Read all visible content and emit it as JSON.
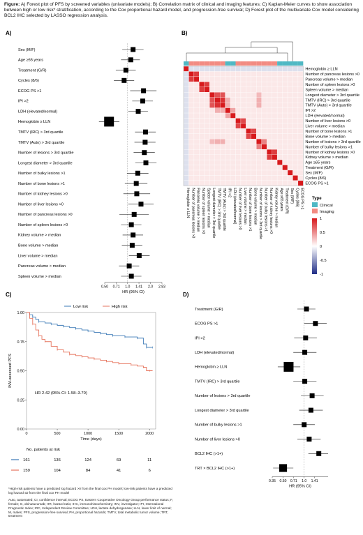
{
  "caption": {
    "label": "Figure:",
    "text": "A) Forest plot of PFS by screened variables (univariate models); B) Correlation matrix of clinical and imaging features; C) Kaplan-Meier curves to show association between high or low risk* stratification, according to the Cox proportional hazard model, and progression-free survival; D) Forest plot of the multivariate Cox model considering BCL2 IHC selected by LASSO regression analysis."
  },
  "panel_labels": {
    "a": "A)",
    "b": "B)",
    "c": "C)",
    "d": "D)"
  },
  "chart_data": [
    {
      "id": "A",
      "type": "forest",
      "xlabel": "HR (95% CI)",
      "x_ticks": [
        "0.50",
        "0.71",
        "1.0",
        "1.41",
        "2.0",
        "2.83"
      ],
      "scale": "log2",
      "xlim": [
        0.5,
        2.83
      ],
      "reference_line": 1.0,
      "rows": [
        {
          "label": "Sex (M/F)",
          "hr": 1.18,
          "lo": 0.85,
          "hi": 1.62
        },
        {
          "label": "Age ≥65 years",
          "hr": 1.1,
          "lo": 0.82,
          "hi": 1.45
        },
        {
          "label": "Treatment (G/R)",
          "hr": 0.95,
          "lo": 0.7,
          "hi": 1.28
        },
        {
          "label": "Cycles (8/6)",
          "hi": 1.22,
          "hr": 0.9,
          "lo": 0.66
        },
        {
          "label": "ECOG PS >1",
          "hr": 1.62,
          "lo": 1.08,
          "hi": 2.4
        },
        {
          "label": "IPI >2",
          "hr": 1.58,
          "lo": 1.15,
          "hi": 2.15
        },
        {
          "label": "LDH (elevated/normal)",
          "hr": 1.38,
          "lo": 1.02,
          "hi": 1.85
        },
        {
          "label": "Hemoglobin ≥ LLN",
          "hr": 0.57,
          "lo": 0.42,
          "hi": 0.78
        },
        {
          "label": "TMTV (IRC) > 3rd quartile",
          "hr": 1.72,
          "lo": 1.25,
          "hi": 2.35
        },
        {
          "label": "TMTV (Auto) > 3rd quartile",
          "hr": 1.7,
          "lo": 1.23,
          "hi": 2.33
        },
        {
          "label": "Number of lesions > 3rd quartile",
          "hr": 1.66,
          "lo": 1.2,
          "hi": 2.28
        },
        {
          "label": "Longest diameter > 3rd quartile",
          "hr": 1.74,
          "lo": 1.26,
          "hi": 2.4
        },
        {
          "label": "Number of bulky lesions >1",
          "hr": 1.36,
          "lo": 0.98,
          "hi": 1.88
        },
        {
          "label": "Number of bone lesions >1",
          "hr": 1.3,
          "lo": 0.92,
          "hi": 1.82
        },
        {
          "label": "Number of kidney lesions >0",
          "hr": 1.32,
          "lo": 0.88,
          "hi": 1.98
        },
        {
          "label": "Number of liver lesions >0",
          "hr": 1.5,
          "lo": 1.02,
          "hi": 2.2
        },
        {
          "label": "Number of pancreas lesions >0",
          "hr": 1.22,
          "lo": 0.78,
          "hi": 1.9
        },
        {
          "label": "Number of spleen lesions >0",
          "hr": 1.12,
          "lo": 0.82,
          "hi": 1.52
        },
        {
          "label": "Kidney volume > median",
          "hr": 1.18,
          "lo": 0.86,
          "hi": 1.6
        },
        {
          "label": "Bone volume > median",
          "hr": 1.15,
          "lo": 0.84,
          "hi": 1.56
        },
        {
          "label": "Liver volume > median",
          "hr": 1.42,
          "lo": 1.04,
          "hi": 1.95
        },
        {
          "label": "Pancreas volume > median",
          "hr": 1.05,
          "lo": 0.77,
          "hi": 1.42
        },
        {
          "label": "Spleen volume > median",
          "hr": 1.12,
          "lo": 0.82,
          "hi": 1.52
        }
      ]
    },
    {
      "id": "B",
      "type": "heatmap",
      "labels": [
        "Hemoglobin ≥ LLN",
        "Number of pancreas lesions >0",
        "Pancreas volume > median",
        "Number of spleen lesions >0",
        "Spleen volume > median",
        "Longest diameter > 3rd quartile",
        "TMTV (IRC) > 3rd quartile",
        "TMTV (Auto) > 3rd quartile",
        "IPI >2",
        "LDH (elevated/normal)",
        "Number of liver lesions >0",
        "Liver volume > median",
        "Number of bone lesions >1",
        "Bone volume > median",
        "Number of lesions > 3rd quartile",
        "Number of bulky lesions >1",
        "Number of kidney lesions >0",
        "Kidney volume > median",
        "Age ≥65 years",
        "Treatment (G/R)",
        "Sex (M/F)",
        "Cycles (8/6)",
        "ECOG PS >1"
      ],
      "types": [
        "Clinical",
        "Imaging",
        "Imaging",
        "Imaging",
        "Imaging",
        "Imaging",
        "Imaging",
        "Imaging",
        "Clinical",
        "Clinical",
        "Imaging",
        "Imaging",
        "Imaging",
        "Imaging",
        "Imaging",
        "Imaging",
        "Imaging",
        "Imaging",
        "Clinical",
        "Clinical",
        "Clinical",
        "Clinical",
        "Clinical"
      ],
      "color_scale": {
        "ticks": [
          "1",
          "0.5",
          "0",
          "-0.5",
          "-1"
        ],
        "high": "#d7191c",
        "mid": "#ffffff",
        "low": "#1f2d86"
      },
      "legend": {
        "title": "Type",
        "items": [
          {
            "label": "Clinical",
            "color": "#4fb8c4"
          },
          {
            "label": "Imaging",
            "color": "#f28b82"
          }
        ]
      },
      "strong_pairs": [
        {
          "a": 1,
          "b": 2,
          "r": 0.85
        },
        {
          "a": 3,
          "b": 4,
          "r": 0.85
        },
        {
          "a": 5,
          "b": 6,
          "r": 0.75
        },
        {
          "a": 5,
          "b": 7,
          "r": 0.75
        },
        {
          "a": 6,
          "b": 7,
          "r": 0.9
        },
        {
          "a": 10,
          "b": 11,
          "r": 0.8
        },
        {
          "a": 12,
          "b": 13,
          "r": 0.8
        },
        {
          "a": 14,
          "b": 15,
          "r": 0.55
        },
        {
          "a": 16,
          "b": 17,
          "r": 0.85
        },
        {
          "a": 6,
          "b": 8,
          "r": 0.35
        },
        {
          "a": 7,
          "b": 8,
          "r": 0.35
        },
        {
          "a": 8,
          "b": 9,
          "r": 0.4
        },
        {
          "a": 5,
          "b": 14,
          "r": 0.3
        },
        {
          "a": 6,
          "b": 14,
          "r": 0.35
        },
        {
          "a": 7,
          "b": 14,
          "r": 0.35
        }
      ]
    },
    {
      "id": "C",
      "type": "line",
      "xlabel": "Time (days)",
      "ylabel": "INV-assessed PFS",
      "x_ticks": [
        0,
        500,
        1000,
        1500,
        2000
      ],
      "y_ticks": [
        "0.00",
        "0.25",
        "0.50",
        "0.75",
        "1.00"
      ],
      "xlim": [
        0,
        2100
      ],
      "ylim": [
        0,
        1
      ],
      "annotation": "HR 2.42 (95% CI: 1.58–3.70)",
      "series": [
        {
          "name": "Low risk",
          "color": "#3a78b5",
          "x": [
            0,
            50,
            100,
            150,
            200,
            300,
            400,
            500,
            600,
            700,
            800,
            900,
            1000,
            1100,
            1200,
            1300,
            1400,
            1500,
            1600,
            1700,
            1800,
            1900,
            1950,
            2000,
            2050
          ],
          "y": [
            1.0,
            0.98,
            0.96,
            0.94,
            0.92,
            0.91,
            0.9,
            0.89,
            0.88,
            0.87,
            0.86,
            0.85,
            0.84,
            0.83,
            0.82,
            0.81,
            0.8,
            0.8,
            0.79,
            0.79,
            0.78,
            0.73,
            0.7,
            0.7,
            0.7
          ]
        },
        {
          "name": "High risk",
          "color": "#e6735c",
          "x": [
            0,
            50,
            100,
            150,
            200,
            250,
            300,
            400,
            500,
            600,
            700,
            800,
            900,
            1000,
            1100,
            1200,
            1300,
            1400,
            1500,
            1600,
            1700,
            1800,
            1900,
            1950,
            2000,
            2050
          ],
          "y": [
            1.0,
            0.95,
            0.9,
            0.85,
            0.8,
            0.77,
            0.75,
            0.71,
            0.68,
            0.66,
            0.64,
            0.63,
            0.62,
            0.61,
            0.6,
            0.59,
            0.58,
            0.57,
            0.56,
            0.56,
            0.55,
            0.54,
            0.53,
            0.5,
            0.5,
            0.5
          ]
        }
      ],
      "risk_table": {
        "title": "No. patients at risk",
        "rows": [
          {
            "name": "Low risk",
            "color": "#3a78b5",
            "values": [
              "161",
              "136",
              "124",
              "69",
              "11"
            ]
          },
          {
            "name": "High risk",
            "color": "#e6735c",
            "values": [
              "159",
              "104",
              "84",
              "41",
              "6"
            ]
          }
        ]
      }
    },
    {
      "id": "D",
      "type": "forest",
      "xlabel": "HR (95% CI)",
      "x_ticks": [
        "0.35",
        "0.50",
        "0.71",
        "1.0",
        "1.41"
      ],
      "scale": "log2",
      "xlim": [
        0.35,
        2.2
      ],
      "reference_line": 1.0,
      "rows": [
        {
          "label": "Treatment (G/R)",
          "hr": 1.08,
          "lo": 0.8,
          "hi": 1.45
        },
        {
          "label": "ECOG PS >1",
          "hr": 1.45,
          "lo": 1.0,
          "hi": 2.1
        },
        {
          "label": "IPI >2",
          "hr": 1.05,
          "lo": 0.72,
          "hi": 1.52
        },
        {
          "label": "LDH (elevated/normal)",
          "hr": 1.02,
          "lo": 0.7,
          "hi": 1.5
        },
        {
          "label": "Hemoglobin ≥ LLN",
          "hr": 0.6,
          "lo": 0.42,
          "hi": 0.88
        },
        {
          "label": "TMTV (IRC) > 3rd quartile",
          "hr": 1.02,
          "lo": 0.7,
          "hi": 1.5
        },
        {
          "label": "Number of lesions > 3rd quartile",
          "hr": 1.3,
          "lo": 0.9,
          "hi": 1.9
        },
        {
          "label": "Longest diameter > 3rd quartile",
          "hr": 1.25,
          "lo": 0.85,
          "hi": 1.85
        },
        {
          "label": "Number of bulky lesions >1",
          "hr": 1.0,
          "lo": 0.7,
          "hi": 1.42
        },
        {
          "label": "Number of liver lesions >0",
          "hr": 1.18,
          "lo": 0.8,
          "hi": 1.72
        },
        {
          "label": "BCL2 IHC (>1+)",
          "hr": 1.62,
          "lo": 1.15,
          "hi": 2.2
        },
        {
          "label": "TRT × BCL2 IHC (>1+)",
          "hr": 0.5,
          "lo": 0.36,
          "hi": 0.7
        }
      ]
    }
  ],
  "footnotes": [
    "*High-risk patients have a predicted log hazard >0 from the final cox PH model; low-risk patients have a predicted log hazard ≤0 from the final cox PH model",
    "Auto, automated; CI, confidence interval; ECOG PS, Eastern Cooperative Oncology Group performance status; F, female; G, obinutuzumab; HR, hazard ratio; IHC, immunohistochemistry; INV, investigator; IPI, International Prognostic Index; IRC, Independent Review Committee; LDH, lactate dehydrogenase; LLN, lower limit of normal; M, males; PFS, progression-free survival; PH, proportional hazards; TMTV, total metabolic tumor volume; TRT, treatment"
  ]
}
